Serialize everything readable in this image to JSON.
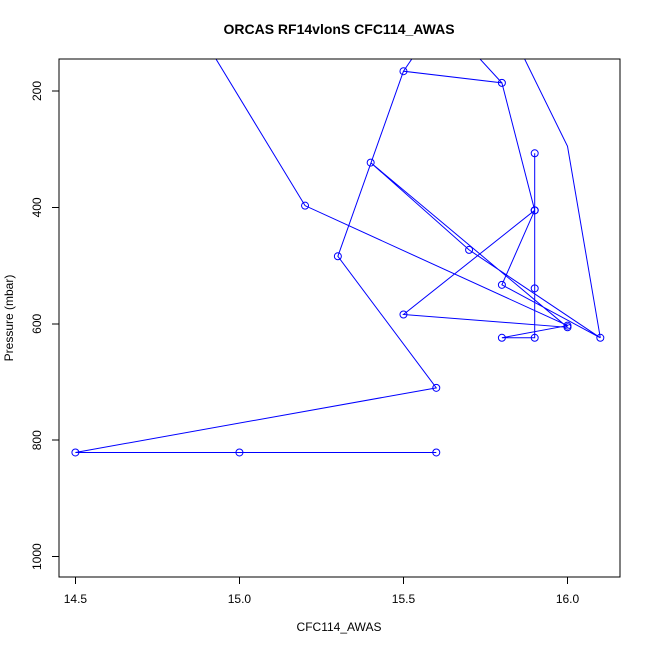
{
  "chart_data": {
    "type": "line",
    "title": "ORCAS RF14vlonS CFC114_AWAS",
    "xlabel": "CFC114_AWAS",
    "ylabel": "Pressure (mbar)",
    "xlim": [
      14.45,
      16.16
    ],
    "ylim": [
      1035,
      145
    ],
    "y_reversed": true,
    "x_ticks": [
      14.5,
      15.0,
      15.5,
      16.0
    ],
    "x_tick_labels": [
      "14.5",
      "15.0",
      "15.5",
      "16.0"
    ],
    "y_ticks": [
      200,
      400,
      600,
      800,
      1000
    ],
    "y_tick_labels": [
      "200",
      "400",
      "600",
      "800",
      "1000"
    ],
    "grid": false,
    "legend": "none",
    "series": [
      {
        "color": "#0000ff",
        "marker": "open-circle",
        "points": [
          {
            "x": 15.6,
            "y": 821
          },
          {
            "x": 15.0,
            "y": 821
          },
          {
            "x": 14.5,
            "y": 821
          },
          {
            "x": 15.6,
            "y": 710
          },
          {
            "x": 15.3,
            "y": 484
          },
          {
            "x": 15.5,
            "y": 166
          },
          {
            "x": 15.8,
            "y": 186
          },
          {
            "x": 15.9,
            "y": 405
          },
          {
            "x": 15.5,
            "y": 584
          },
          {
            "x": 16.0,
            "y": 606
          },
          {
            "x": 15.4,
            "y": 323
          },
          {
            "x": 15.7,
            "y": 473
          },
          {
            "x": 16.1,
            "y": 624
          },
          {
            "x": 15.8,
            "y": 533
          },
          {
            "x": 15.9,
            "y": 405
          },
          {
            "x": 15.9,
            "y": 307
          },
          {
            "x": 15.9,
            "y": 539
          },
          {
            "x": 15.9,
            "y": 624
          },
          {
            "x": 15.8,
            "y": 624
          },
          {
            "x": 16.0,
            "y": 603
          },
          {
            "x": 15.2,
            "y": 397
          },
          {
            "x": 14.88,
            "y": 100
          }
        ],
        "extra_paths": [
          [
            {
              "x": 15.58,
              "y": 100
            },
            {
              "x": 15.5,
              "y": 166
            }
          ],
          [
            {
              "x": 15.66,
              "y": 100
            },
            {
              "x": 15.8,
              "y": 186
            }
          ],
          [
            {
              "x": 15.83,
              "y": 100
            },
            {
              "x": 16.0,
              "y": 295
            },
            {
              "x": 16.1,
              "y": 624
            }
          ]
        ]
      }
    ]
  }
}
